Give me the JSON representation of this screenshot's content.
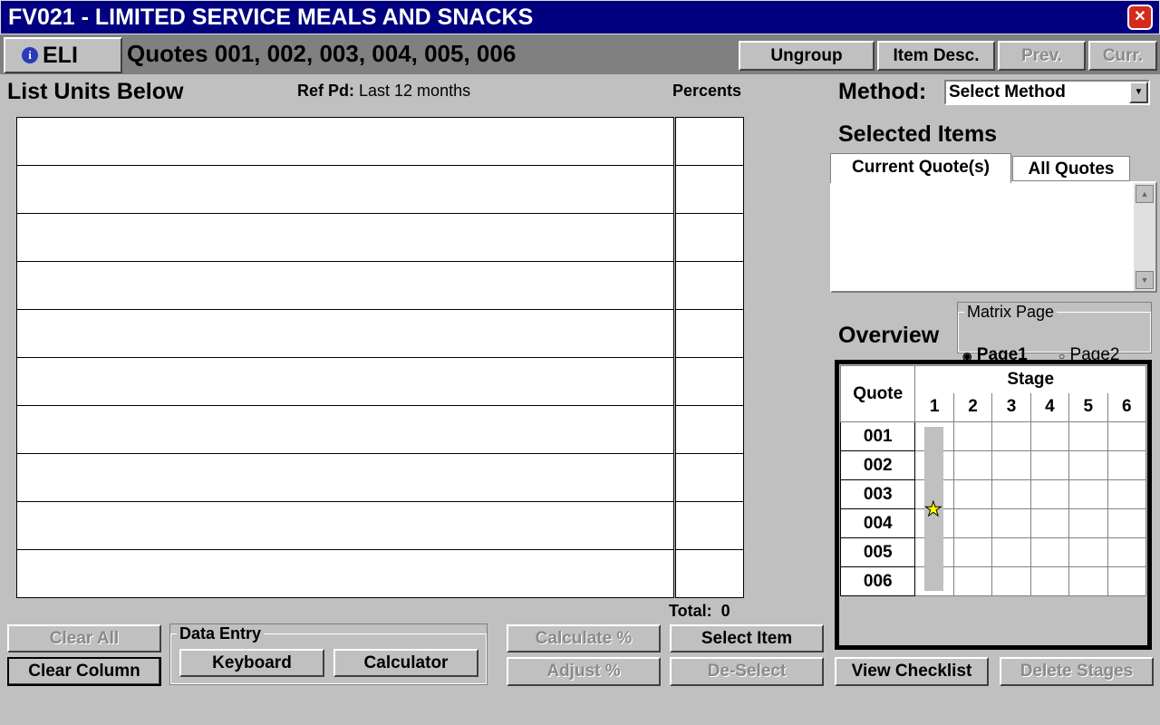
{
  "window": {
    "title": "FV021 - LIMITED SERVICE MEALS AND SNACKS",
    "close_icon": "close-icon"
  },
  "header": {
    "eli_label": "ELI",
    "quotes_label": "Quotes 001, 002, 003, 004, 005, 006",
    "buttons": {
      "ungroup": "Ungroup",
      "item_desc": "Item Desc.",
      "prev": "Prev.",
      "curr": "Curr."
    }
  },
  "list": {
    "title": "List Units Below",
    "ref_pd_label": "Ref Pd:",
    "ref_pd_value": "Last 12 months",
    "percents_label": "Percents",
    "total_label": "Total:",
    "total_value": "0",
    "rows": [
      "",
      "",
      "",
      "",
      "",
      "",
      "",
      "",
      "",
      ""
    ]
  },
  "method": {
    "label": "Method:",
    "selected": "Select Method"
  },
  "selected_items": {
    "title": "Selected Items",
    "tabs": [
      "Current Quote(s)",
      "All Quotes"
    ],
    "active_tab": "Current Quote(s)"
  },
  "matrix_page": {
    "legend": "Matrix Page",
    "options": [
      "Page1",
      "Page2"
    ],
    "selected": "Page1"
  },
  "overview": {
    "title": "Overview",
    "quote_header": "Quote",
    "stage_header": "Stage",
    "stages": [
      "1",
      "2",
      "3",
      "4",
      "5",
      "6"
    ],
    "quotes": [
      "001",
      "002",
      "003",
      "004",
      "005",
      "006"
    ],
    "current_stage": "1",
    "marker": "star-icon",
    "marker_color": "#ffff00"
  },
  "bottom": {
    "clear_all": "Clear All",
    "clear_column": "Clear Column",
    "data_entry_legend": "Data Entry",
    "keyboard": "Keyboard",
    "calculator": "Calculator",
    "calculate_pct": "Calculate %",
    "adjust_pct": "Adjust %",
    "select_item": "Select Item",
    "de_select": "De-Select",
    "view_checklist": "View Checklist",
    "delete_stages": "Delete Stages"
  }
}
